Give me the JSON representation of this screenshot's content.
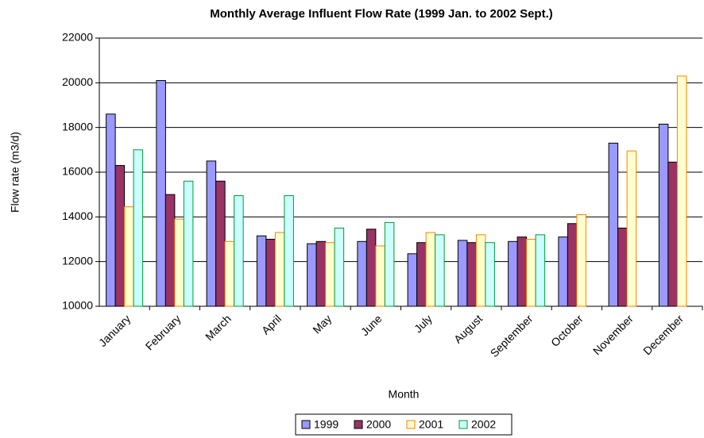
{
  "chart_data": {
    "type": "bar",
    "title": "Monthly Average Influent Flow Rate (1999 Jan. to 2002 Sept.)",
    "xlabel": "Month",
    "ylabel": "Flow rate (m3/d)",
    "categories": [
      "January",
      "February",
      "March",
      "April",
      "May",
      "June",
      "July",
      "August",
      "September",
      "October",
      "November",
      "December"
    ],
    "series": [
      {
        "name": "1999",
        "color": "#9999ff",
        "edgecolor": "#000000",
        "values": [
          18600,
          20100,
          16500,
          13150,
          12800,
          12900,
          12350,
          12950,
          12900,
          13100,
          17300,
          18150
        ]
      },
      {
        "name": "2000",
        "color": "#993366",
        "edgecolor": "#000000",
        "values": [
          16300,
          15000,
          15600,
          13000,
          12900,
          13450,
          12850,
          12850,
          13100,
          13700,
          13500,
          16450
        ]
      },
      {
        "name": "2001",
        "color": "#ffffcc",
        "edgecolor": "#ff8000",
        "values": [
          14450,
          13900,
          12900,
          13300,
          12850,
          12700,
          13300,
          13200,
          13000,
          14100,
          16950,
          20300
        ]
      },
      {
        "name": "2002",
        "color": "#ccffff",
        "edgecolor": "#009933",
        "values": [
          17000,
          15600,
          14950,
          14950,
          13500,
          13750,
          13200,
          12850,
          13200,
          null,
          null,
          null
        ]
      }
    ],
    "ylim": [
      10000,
      22000
    ],
    "yticks": [
      10000,
      12000,
      14000,
      16000,
      18000,
      20000,
      22000
    ],
    "grid": true,
    "legend": "bottom"
  }
}
